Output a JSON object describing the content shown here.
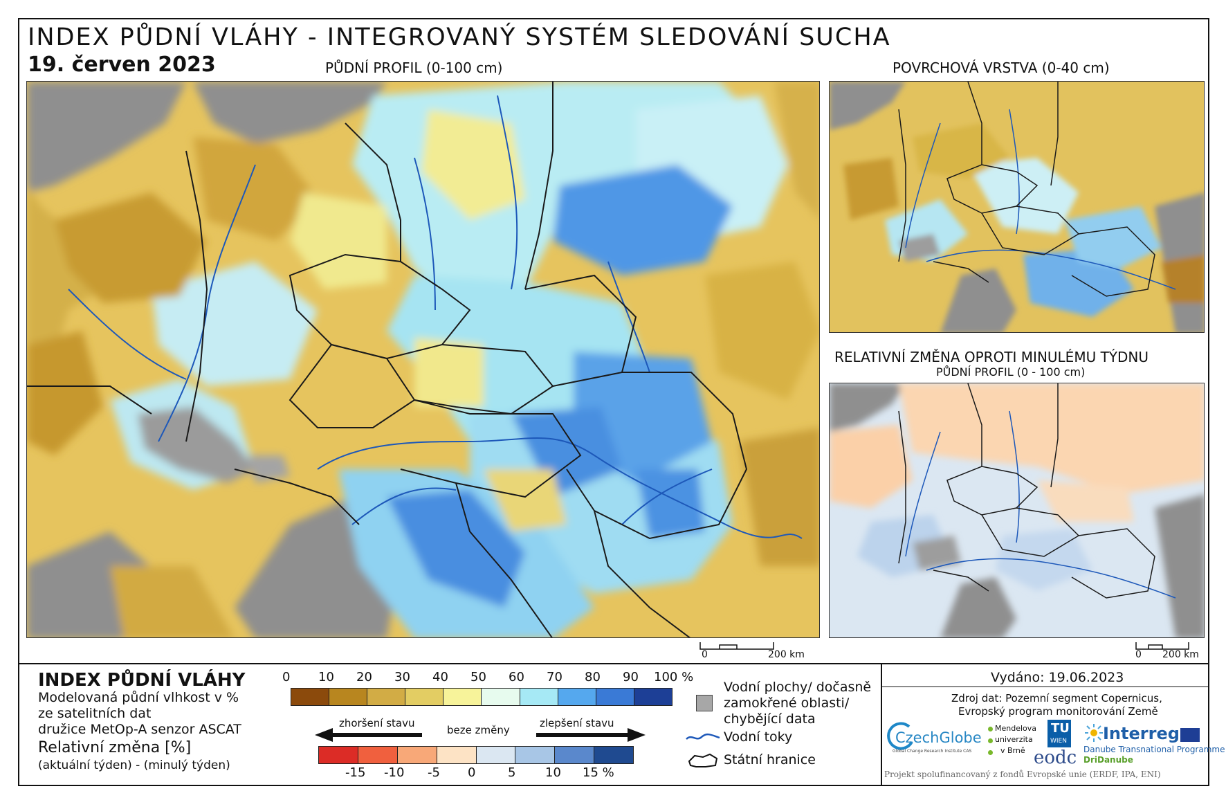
{
  "header": {
    "title": "INDEX PŮDNÍ VLÁHY - INTEGROVANÝ SYSTÉM SLEDOVÁNÍ SUCHA",
    "date": "19. červen 2023"
  },
  "maps": {
    "main": {
      "title": "PŮDNÍ PROFIL (0-100 cm)",
      "scale_start": "0",
      "scale_end": "200 km"
    },
    "surface": {
      "title": "POVRCHOVÁ VRSTVA (0-40 cm)"
    },
    "change": {
      "title": "RELATIVNÍ ZMĚNA OPROTI MINULÉMU TÝDNU",
      "subtitle": "PŮDNÍ PROFIL (0 - 100 cm)",
      "scale_start": "0",
      "scale_end": "200 km"
    }
  },
  "legend": {
    "title": "INDEX PŮDNÍ VLÁHY",
    "desc_line1": "Modelovaná půdní vlhkost v %",
    "desc_line2": "ze satelitních dat",
    "desc_line3": "družice MetOp-A senzor ASCAT",
    "change_title": "Relativní změna [%]",
    "change_desc": "(aktuální týden) - (minulý týden)",
    "index_ticks": [
      "0",
      "10",
      "20",
      "30",
      "40",
      "50",
      "60",
      "70",
      "80",
      "90",
      "100 %"
    ],
    "index_colors": [
      "#8b4a0c",
      "#b8861f",
      "#d2ac45",
      "#e3cd63",
      "#f7f39a",
      "#e7fbee",
      "#a6e9f5",
      "#55a8ee",
      "#3a7ad6",
      "#1d3f96"
    ],
    "change_ticks": [
      "-15",
      "-10",
      "-5",
      "0",
      "5",
      "10",
      "15 %"
    ],
    "change_colors": [
      "#dc2c26",
      "#f0603e",
      "#f8a878",
      "#fde3c5",
      "#dbe7f2",
      "#a8c6e6",
      "#5a88cc",
      "#1f4a90"
    ],
    "worse": "zhoršení stavu",
    "nochange": "beze změny",
    "better": "zlepšení stavu",
    "water_label1": "Vodní plochy/ dočasně",
    "water_label2": "zamokřené oblasti/",
    "water_label3": "chybějící data",
    "rivers": "Vodní toky",
    "borders": "Státní hranice"
  },
  "info": {
    "issued": "Vydáno: 19.06.2023",
    "source1": "Zdroj dat: Pozemní segment Copernicus,",
    "source2": "Evropský program monitorování Země",
    "funding": "Projekt spolufinancovaný z fondů Evropské unie (ERDF, IPA, ENI)"
  },
  "logos": {
    "czechglobe": "CzechGlobe",
    "czechglobe_sub": "Global Change Research Institute CAS",
    "mendel1": "Mendelova",
    "mendel2": "univerzita",
    "mendel3": "v Brně",
    "tu": "TU",
    "wien": "WIEN",
    "eodc": "eodc",
    "interreg": "Interreg",
    "dtp": "Danube Transnational Programme",
    "dridanube": "DriDanube"
  }
}
